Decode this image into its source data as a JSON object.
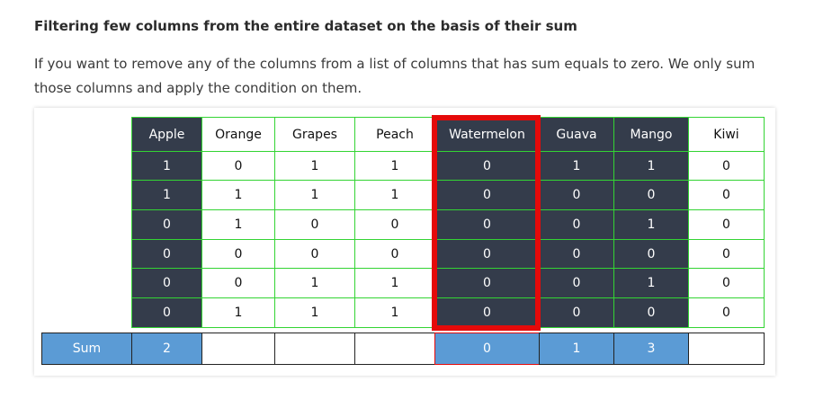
{
  "heading": "Filtering few columns from the entire dataset on the basis of their sum",
  "paragraph": "If you want to remove any of the columns from a list of columns that has sum equals to zero. We only sum those columns and apply the condition on them.",
  "table": {
    "headers": [
      "Apple",
      "Orange",
      "Grapes",
      "Peach",
      "Watermelon",
      "Guava",
      "Mango",
      "Kiwi"
    ],
    "rows": [
      [
        "1",
        "0",
        "1",
        "1",
        "0",
        "1",
        "1",
        "0"
      ],
      [
        "1",
        "1",
        "1",
        "1",
        "0",
        "0",
        "0",
        "0"
      ],
      [
        "0",
        "1",
        "0",
        "0",
        "0",
        "0",
        "1",
        "0"
      ],
      [
        "0",
        "0",
        "0",
        "0",
        "0",
        "0",
        "0",
        "0"
      ],
      [
        "0",
        "0",
        "1",
        "1",
        "0",
        "0",
        "1",
        "0"
      ],
      [
        "0",
        "1",
        "1",
        "1",
        "0",
        "0",
        "0",
        "0"
      ]
    ],
    "sum_label": "Sum",
    "sums": [
      "2",
      "",
      "",
      "",
      "0",
      "1",
      "3",
      ""
    ],
    "dark_columns": [
      "Apple",
      "Watermelon",
      "Guava",
      "Mango"
    ],
    "highlighted_column": "Watermelon",
    "colors": {
      "dark_cell": "#343c4b",
      "sum_blue": "#5b9bd5",
      "grid_green": "#33d433",
      "highlight_red": "#e50a0a"
    }
  }
}
